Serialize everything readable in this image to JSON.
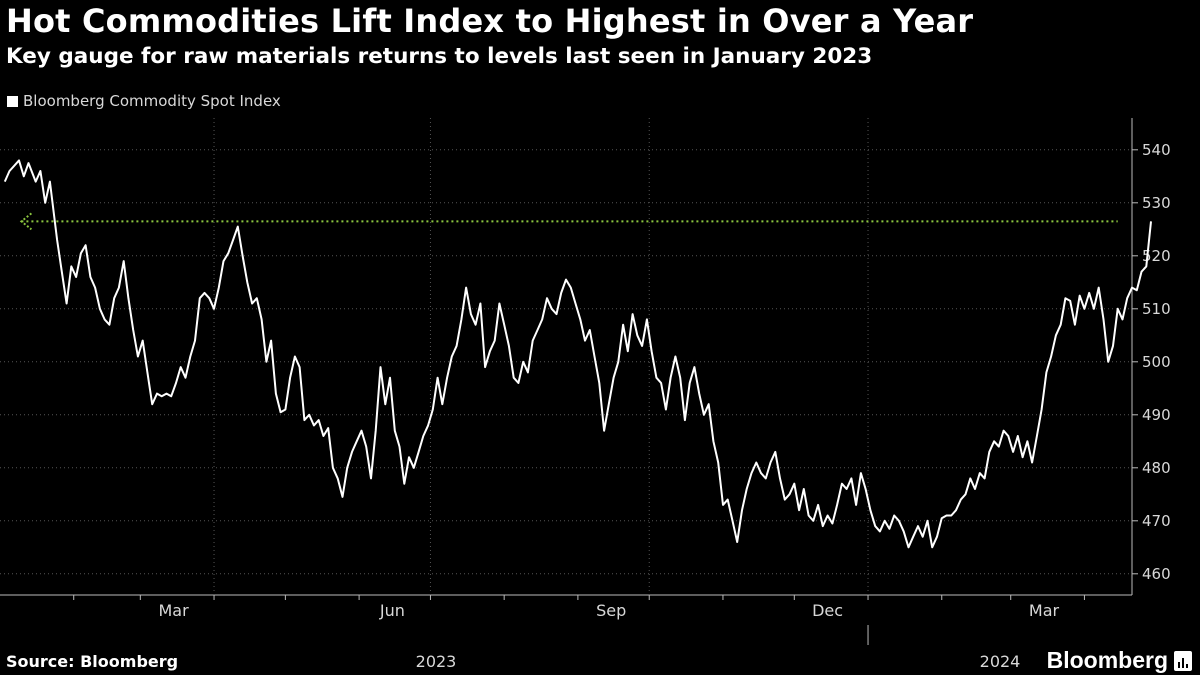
{
  "header": {
    "title": "Hot Commodities Lift Index to Highest in Over a Year",
    "subtitle": "Key gauge for raw materials returns to levels last seen in January 2023"
  },
  "footer": {
    "source": "Source: Bloomberg",
    "brand": "Bloomberg"
  },
  "chart_data": {
    "type": "line",
    "legend_position": "top-left",
    "grid": true,
    "ylim": [
      456,
      546
    ],
    "y_ticks": [
      460,
      470,
      480,
      490,
      500,
      510,
      520,
      530,
      540
    ],
    "x_tick_labels": [
      "Mar",
      "Jun",
      "Sep",
      "Dec",
      "Mar"
    ],
    "x_tick_dates": [
      "2023-03-01",
      "2023-06-01",
      "2023-09-01",
      "2023-12-01",
      "2024-03-01"
    ],
    "year_labels": [
      "2023",
      "2024"
    ],
    "xlim": [
      "2023-01-01",
      "2024-04-21"
    ],
    "reference_line": {
      "value": 526.5,
      "from": "2023-01-10",
      "to": "2024-04-15",
      "color": "#8bc53f"
    },
    "colors": {
      "series": "#ffffff",
      "reference": "#8bc53f",
      "grid": "#555555",
      "background": "#000000"
    },
    "series": [
      {
        "name": "Bloomberg Commodity Spot Index",
        "points": [
          [
            "2023-01-03",
            534.0
          ],
          [
            "2023-01-05",
            536.0
          ],
          [
            "2023-01-07",
            537.0
          ],
          [
            "2023-01-09",
            538.0
          ],
          [
            "2023-01-11",
            535.0
          ],
          [
            "2023-01-13",
            537.5
          ],
          [
            "2023-01-16",
            534.0
          ],
          [
            "2023-01-18",
            536.0
          ],
          [
            "2023-01-20",
            530.0
          ],
          [
            "2023-01-22",
            534.0
          ],
          [
            "2023-01-25",
            523.0
          ],
          [
            "2023-01-27",
            517.0
          ],
          [
            "2023-01-29",
            511.0
          ],
          [
            "2023-01-31",
            518.0
          ],
          [
            "2023-02-02",
            516.0
          ],
          [
            "2023-02-04",
            520.5
          ],
          [
            "2023-02-06",
            522.0
          ],
          [
            "2023-02-08",
            516.0
          ],
          [
            "2023-02-10",
            514.0
          ],
          [
            "2023-02-12",
            510.0
          ],
          [
            "2023-02-14",
            508.0
          ],
          [
            "2023-02-16",
            507.0
          ],
          [
            "2023-02-18",
            512.0
          ],
          [
            "2023-02-20",
            514.0
          ],
          [
            "2023-02-22",
            519.0
          ],
          [
            "2023-02-24",
            512.0
          ],
          [
            "2023-02-26",
            506.0
          ],
          [
            "2023-02-28",
            501.0
          ],
          [
            "2023-03-02",
            504.0
          ],
          [
            "2023-03-04",
            498.0
          ],
          [
            "2023-03-06",
            492.0
          ],
          [
            "2023-03-08",
            494.0
          ],
          [
            "2023-03-10",
            493.5
          ],
          [
            "2023-03-12",
            494.0
          ],
          [
            "2023-03-14",
            493.5
          ],
          [
            "2023-03-16",
            496.0
          ],
          [
            "2023-03-18",
            499.0
          ],
          [
            "2023-03-20",
            497.0
          ],
          [
            "2023-03-22",
            501.0
          ],
          [
            "2023-03-24",
            504.0
          ],
          [
            "2023-03-26",
            512.0
          ],
          [
            "2023-03-28",
            513.0
          ],
          [
            "2023-03-30",
            512.0
          ],
          [
            "2023-04-01",
            510.0
          ],
          [
            "2023-04-03",
            514.0
          ],
          [
            "2023-04-05",
            519.0
          ],
          [
            "2023-04-07",
            520.5
          ],
          [
            "2023-04-09",
            523.0
          ],
          [
            "2023-04-11",
            525.5
          ],
          [
            "2023-04-13",
            520.0
          ],
          [
            "2023-04-15",
            515.0
          ],
          [
            "2023-04-17",
            511.0
          ],
          [
            "2023-04-19",
            512.0
          ],
          [
            "2023-04-21",
            508.0
          ],
          [
            "2023-04-23",
            500.0
          ],
          [
            "2023-04-25",
            504.0
          ],
          [
            "2023-04-27",
            494.0
          ],
          [
            "2023-04-29",
            490.5
          ],
          [
            "2023-05-01",
            491.0
          ],
          [
            "2023-05-03",
            497.0
          ],
          [
            "2023-05-05",
            501.0
          ],
          [
            "2023-05-07",
            499.0
          ],
          [
            "2023-05-09",
            489.0
          ],
          [
            "2023-05-11",
            490.0
          ],
          [
            "2023-05-13",
            488.0
          ],
          [
            "2023-05-15",
            489.0
          ],
          [
            "2023-05-17",
            486.0
          ],
          [
            "2023-05-19",
            487.5
          ],
          [
            "2023-05-21",
            480.0
          ],
          [
            "2023-05-23",
            478.0
          ],
          [
            "2023-05-25",
            474.5
          ],
          [
            "2023-05-27",
            480.0
          ],
          [
            "2023-05-29",
            483.0
          ],
          [
            "2023-05-31",
            485.0
          ],
          [
            "2023-06-02",
            487.0
          ],
          [
            "2023-06-04",
            484.0
          ],
          [
            "2023-06-06",
            478.0
          ],
          [
            "2023-06-08",
            487.0
          ],
          [
            "2023-06-10",
            499.0
          ],
          [
            "2023-06-12",
            492.0
          ],
          [
            "2023-06-14",
            497.0
          ],
          [
            "2023-06-16",
            487.0
          ],
          [
            "2023-06-18",
            484.0
          ],
          [
            "2023-06-20",
            477.0
          ],
          [
            "2023-06-22",
            482.0
          ],
          [
            "2023-06-24",
            480.0
          ],
          [
            "2023-06-26",
            483.0
          ],
          [
            "2023-06-28",
            486.0
          ],
          [
            "2023-06-30",
            488.0
          ],
          [
            "2023-07-02",
            491.0
          ],
          [
            "2023-07-04",
            497.0
          ],
          [
            "2023-07-06",
            492.0
          ],
          [
            "2023-07-08",
            497.0
          ],
          [
            "2023-07-10",
            501.0
          ],
          [
            "2023-07-12",
            503.0
          ],
          [
            "2023-07-14",
            508.0
          ],
          [
            "2023-07-16",
            514.0
          ],
          [
            "2023-07-18",
            509.0
          ],
          [
            "2023-07-20",
            507.0
          ],
          [
            "2023-07-22",
            511.0
          ],
          [
            "2023-07-24",
            499.0
          ],
          [
            "2023-07-26",
            502.0
          ],
          [
            "2023-07-28",
            504.0
          ],
          [
            "2023-07-30",
            511.0
          ],
          [
            "2023-08-01",
            507.0
          ],
          [
            "2023-08-03",
            503.0
          ],
          [
            "2023-08-05",
            497.0
          ],
          [
            "2023-08-07",
            496.0
          ],
          [
            "2023-08-09",
            500.0
          ],
          [
            "2023-08-11",
            498.0
          ],
          [
            "2023-08-13",
            504.0
          ],
          [
            "2023-08-15",
            506.0
          ],
          [
            "2023-08-17",
            508.0
          ],
          [
            "2023-08-19",
            512.0
          ],
          [
            "2023-08-21",
            510.0
          ],
          [
            "2023-08-23",
            509.0
          ],
          [
            "2023-08-25",
            513.0
          ],
          [
            "2023-08-27",
            515.5
          ],
          [
            "2023-08-29",
            514.0
          ],
          [
            "2023-08-31",
            511.0
          ],
          [
            "2023-09-02",
            508.0
          ],
          [
            "2023-09-04",
            504.0
          ],
          [
            "2023-09-06",
            506.0
          ],
          [
            "2023-09-08",
            501.0
          ],
          [
            "2023-09-10",
            496.0
          ],
          [
            "2023-09-12",
            487.0
          ],
          [
            "2023-09-14",
            492.0
          ],
          [
            "2023-09-16",
            497.0
          ],
          [
            "2023-09-18",
            500.0
          ],
          [
            "2023-09-20",
            507.0
          ],
          [
            "2023-09-22",
            502.0
          ],
          [
            "2023-09-24",
            509.0
          ],
          [
            "2023-09-26",
            505.0
          ],
          [
            "2023-09-28",
            503.0
          ],
          [
            "2023-09-30",
            508.0
          ],
          [
            "2023-10-02",
            502.0
          ],
          [
            "2023-10-04",
            497.0
          ],
          [
            "2023-10-06",
            496.0
          ],
          [
            "2023-10-08",
            491.0
          ],
          [
            "2023-10-10",
            497.0
          ],
          [
            "2023-10-12",
            501.0
          ],
          [
            "2023-10-14",
            497.0
          ],
          [
            "2023-10-16",
            489.0
          ],
          [
            "2023-10-18",
            496.0
          ],
          [
            "2023-10-20",
            499.0
          ],
          [
            "2023-10-22",
            494.0
          ],
          [
            "2023-10-24",
            490.0
          ],
          [
            "2023-10-26",
            492.0
          ],
          [
            "2023-10-28",
            485.0
          ],
          [
            "2023-10-30",
            481.0
          ],
          [
            "2023-11-01",
            473.0
          ],
          [
            "2023-11-03",
            474.0
          ],
          [
            "2023-11-05",
            470.0
          ],
          [
            "2023-11-07",
            466.0
          ],
          [
            "2023-11-09",
            472.0
          ],
          [
            "2023-11-11",
            476.0
          ],
          [
            "2023-11-13",
            479.0
          ],
          [
            "2023-11-15",
            481.0
          ],
          [
            "2023-11-17",
            479.0
          ],
          [
            "2023-11-19",
            478.0
          ],
          [
            "2023-11-21",
            481.0
          ],
          [
            "2023-11-23",
            483.0
          ],
          [
            "2023-11-25",
            478.0
          ],
          [
            "2023-11-27",
            474.0
          ],
          [
            "2023-11-29",
            475.0
          ],
          [
            "2023-12-01",
            477.0
          ],
          [
            "2023-12-03",
            472.0
          ],
          [
            "2023-12-05",
            476.0
          ],
          [
            "2023-12-07",
            471.0
          ],
          [
            "2023-12-09",
            470.0
          ],
          [
            "2023-12-11",
            473.0
          ],
          [
            "2023-12-13",
            469.0
          ],
          [
            "2023-12-15",
            471.0
          ],
          [
            "2023-12-17",
            469.5
          ],
          [
            "2023-12-19",
            473.0
          ],
          [
            "2023-12-21",
            477.0
          ],
          [
            "2023-12-23",
            476.0
          ],
          [
            "2023-12-25",
            478.0
          ],
          [
            "2023-12-27",
            473.0
          ],
          [
            "2023-12-29",
            479.0
          ],
          [
            "2023-12-31",
            476.0
          ],
          [
            "2024-01-02",
            472.0
          ],
          [
            "2024-01-04",
            469.0
          ],
          [
            "2024-01-06",
            468.0
          ],
          [
            "2024-01-08",
            470.0
          ],
          [
            "2024-01-10",
            468.5
          ],
          [
            "2024-01-12",
            471.0
          ],
          [
            "2024-01-14",
            470.0
          ],
          [
            "2024-01-16",
            468.0
          ],
          [
            "2024-01-18",
            465.0
          ],
          [
            "2024-01-20",
            467.0
          ],
          [
            "2024-01-22",
            469.0
          ],
          [
            "2024-01-24",
            467.0
          ],
          [
            "2024-01-26",
            470.0
          ],
          [
            "2024-01-28",
            465.0
          ],
          [
            "2024-01-30",
            467.0
          ],
          [
            "2024-02-01",
            470.5
          ],
          [
            "2024-02-03",
            471.0
          ],
          [
            "2024-02-05",
            471.0
          ],
          [
            "2024-02-07",
            472.0
          ],
          [
            "2024-02-09",
            474.0
          ],
          [
            "2024-02-11",
            475.0
          ],
          [
            "2024-02-13",
            478.0
          ],
          [
            "2024-02-15",
            476.0
          ],
          [
            "2024-02-17",
            479.0
          ],
          [
            "2024-02-19",
            478.0
          ],
          [
            "2024-02-21",
            483.0
          ],
          [
            "2024-02-23",
            485.0
          ],
          [
            "2024-02-25",
            484.0
          ],
          [
            "2024-02-27",
            487.0
          ],
          [
            "2024-02-29",
            486.0
          ],
          [
            "2024-03-02",
            483.0
          ],
          [
            "2024-03-04",
            486.0
          ],
          [
            "2024-03-06",
            482.0
          ],
          [
            "2024-03-08",
            485.0
          ],
          [
            "2024-03-10",
            481.0
          ],
          [
            "2024-03-12",
            486.0
          ],
          [
            "2024-03-14",
            491.0
          ],
          [
            "2024-03-16",
            498.0
          ],
          [
            "2024-03-18",
            501.0
          ],
          [
            "2024-03-20",
            505.0
          ],
          [
            "2024-03-22",
            507.0
          ],
          [
            "2024-03-24",
            512.0
          ],
          [
            "2024-03-26",
            511.5
          ],
          [
            "2024-03-28",
            507.0
          ],
          [
            "2024-03-30",
            512.5
          ],
          [
            "2024-04-01",
            510.0
          ],
          [
            "2024-04-03",
            513.0
          ],
          [
            "2024-04-05",
            510.0
          ],
          [
            "2024-04-07",
            514.0
          ],
          [
            "2024-04-09",
            508.0
          ],
          [
            "2024-04-11",
            500.0
          ],
          [
            "2024-04-13",
            503.0
          ],
          [
            "2024-04-15",
            510.0
          ],
          [
            "2024-04-17",
            508.0
          ],
          [
            "2024-04-19",
            512.0
          ],
          [
            "2024-04-21",
            514.0
          ],
          [
            "2024-04-23",
            513.5
          ],
          [
            "2024-04-25",
            517.0
          ],
          [
            "2024-04-27",
            518.0
          ],
          [
            "2024-04-29",
            526.5
          ]
        ]
      }
    ]
  }
}
